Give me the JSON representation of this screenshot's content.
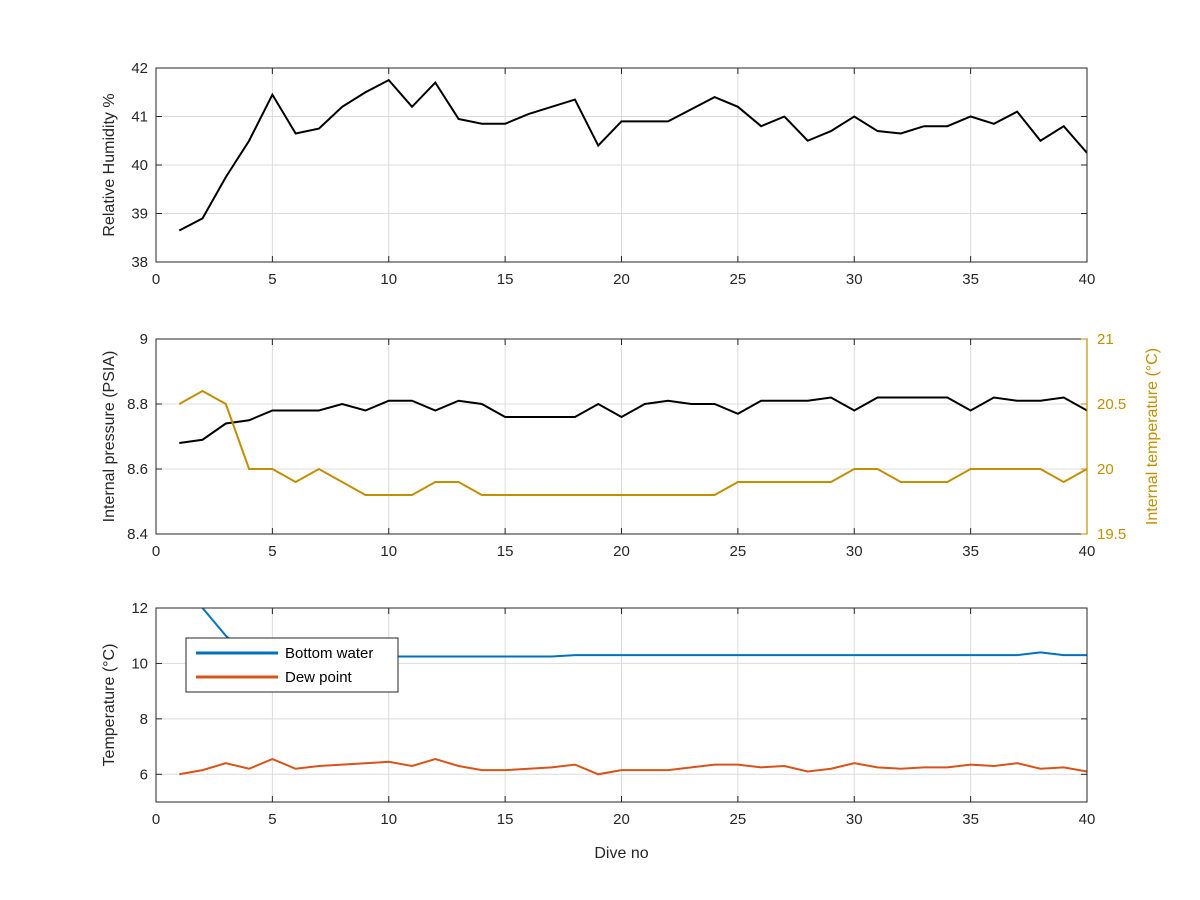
{
  "chart_data": [
    {
      "type": "line",
      "title": "",
      "xlabel": "",
      "ylabel": "Relative Humidity %",
      "xlim": [
        0,
        40
      ],
      "ylim": [
        38,
        42
      ],
      "xticks": [
        0,
        5,
        10,
        15,
        20,
        25,
        30,
        35,
        40
      ],
      "yticks": [
        38,
        39,
        40,
        41,
        42
      ],
      "grid": true,
      "series": [
        {
          "color": "#000000",
          "x": [
            1,
            2,
            3,
            4,
            5,
            6,
            7,
            8,
            9,
            10,
            11,
            12,
            13,
            14,
            15,
            16,
            17,
            18,
            19,
            20,
            21,
            22,
            23,
            24,
            25,
            26,
            27,
            28,
            29,
            30,
            31,
            32,
            33,
            34,
            35,
            36,
            37,
            38,
            39,
            40
          ],
          "values": [
            38.65,
            38.9,
            39.75,
            40.5,
            41.45,
            40.65,
            40.75,
            41.2,
            41.5,
            41.75,
            41.2,
            41.7,
            40.95,
            40.85,
            40.85,
            41.05,
            41.2,
            41.35,
            40.4,
            40.9,
            40.9,
            40.9,
            41.15,
            41.4,
            41.2,
            40.8,
            41.0,
            40.5,
            40.7,
            41.0,
            40.7,
            40.65,
            40.8,
            40.8,
            41.0,
            40.85,
            41.1,
            40.5,
            40.8,
            40.25
          ]
        }
      ]
    },
    {
      "type": "line",
      "title": "",
      "xlabel": "",
      "ylabel": "Internal pressure (PSIA)",
      "ylabel_right": "Internal temperature (°C)",
      "xlim": [
        0,
        40
      ],
      "ylim": [
        8.4,
        9
      ],
      "ylim_right": [
        19.5,
        21
      ],
      "xticks": [
        0,
        5,
        10,
        15,
        20,
        25,
        30,
        35,
        40
      ],
      "yticks": [
        8.4,
        8.6,
        8.8,
        9
      ],
      "ytick_labels": [
        "8.4",
        "8.6",
        "8.8",
        "9"
      ],
      "yticks_right": [
        19.5,
        20,
        20.5,
        21
      ],
      "ytick_labels_right": [
        "19.5",
        "20",
        "20.5",
        "21"
      ],
      "right_axis_color": "#c09000",
      "grid": true,
      "series": [
        {
          "axis": "left",
          "color": "#000000",
          "x": [
            1,
            2,
            3,
            4,
            5,
            6,
            7,
            8,
            9,
            10,
            11,
            12,
            13,
            14,
            15,
            16,
            17,
            18,
            19,
            20,
            21,
            22,
            23,
            24,
            25,
            26,
            27,
            28,
            29,
            30,
            31,
            32,
            33,
            34,
            35,
            36,
            37,
            38,
            39,
            40
          ],
          "values": [
            8.68,
            8.69,
            8.74,
            8.75,
            8.78,
            8.78,
            8.78,
            8.8,
            8.78,
            8.81,
            8.81,
            8.78,
            8.81,
            8.8,
            8.76,
            8.76,
            8.76,
            8.76,
            8.8,
            8.76,
            8.8,
            8.81,
            8.8,
            8.8,
            8.77,
            8.81,
            8.81,
            8.81,
            8.82,
            8.78,
            8.82,
            8.82,
            8.82,
            8.82,
            8.78,
            8.82,
            8.81,
            8.81,
            8.82,
            8.78
          ]
        },
        {
          "axis": "right",
          "color": "#c09000",
          "x": [
            1,
            2,
            3,
            4,
            5,
            6,
            7,
            8,
            9,
            10,
            11,
            12,
            13,
            14,
            15,
            16,
            17,
            18,
            19,
            20,
            21,
            22,
            23,
            24,
            25,
            26,
            27,
            28,
            29,
            30,
            31,
            32,
            33,
            34,
            35,
            36,
            37,
            38,
            39,
            40
          ],
          "values": [
            20.5,
            20.6,
            20.5,
            20.0,
            20.0,
            19.9,
            20.0,
            19.9,
            19.8,
            19.8,
            19.8,
            19.9,
            19.9,
            19.8,
            19.8,
            19.8,
            19.8,
            19.8,
            19.8,
            19.8,
            19.8,
            19.8,
            19.8,
            19.8,
            19.9,
            19.9,
            19.9,
            19.9,
            19.9,
            20.0,
            20.0,
            19.9,
            19.9,
            19.9,
            20.0,
            20.0,
            20.0,
            20.0,
            19.9,
            20.0
          ]
        }
      ]
    },
    {
      "type": "line",
      "title": "",
      "xlabel": "Dive no",
      "ylabel": "Temperature (°C)",
      "xlim": [
        0,
        40
      ],
      "ylim": [
        5,
        12
      ],
      "xticks": [
        0,
        5,
        10,
        15,
        20,
        25,
        30,
        35,
        40
      ],
      "yticks": [
        6,
        8,
        10,
        12
      ],
      "grid": true,
      "legend_position": "top-left",
      "series": [
        {
          "name": "Bottom water",
          "color": "#0072bd",
          "x": [
            1,
            2,
            3,
            4,
            5,
            6,
            7,
            8,
            9,
            10,
            11,
            12,
            13,
            14,
            15,
            16,
            17,
            18,
            19,
            20,
            21,
            22,
            23,
            24,
            25,
            26,
            27,
            28,
            29,
            30,
            31,
            32,
            33,
            34,
            35,
            36,
            37,
            38,
            39,
            40
          ],
          "values": [
            12.6,
            12.0,
            11.0,
            10.25,
            10.25,
            10.25,
            10.25,
            10.25,
            10.25,
            10.25,
            10.25,
            10.25,
            10.25,
            10.25,
            10.25,
            10.25,
            10.25,
            10.3,
            10.3,
            10.3,
            10.3,
            10.3,
            10.3,
            10.3,
            10.3,
            10.3,
            10.3,
            10.3,
            10.3,
            10.3,
            10.3,
            10.3,
            10.3,
            10.3,
            10.3,
            10.3,
            10.3,
            10.4,
            10.3,
            10.3
          ]
        },
        {
          "name": "Dew point",
          "color": "#d95319",
          "x": [
            1,
            2,
            3,
            4,
            5,
            6,
            7,
            8,
            9,
            10,
            11,
            12,
            13,
            14,
            15,
            16,
            17,
            18,
            19,
            20,
            21,
            22,
            23,
            24,
            25,
            26,
            27,
            28,
            29,
            30,
            31,
            32,
            33,
            34,
            35,
            36,
            37,
            38,
            39,
            40
          ],
          "values": [
            6.0,
            6.15,
            6.4,
            6.2,
            6.55,
            6.2,
            6.3,
            6.35,
            6.4,
            6.45,
            6.3,
            6.55,
            6.3,
            6.15,
            6.15,
            6.2,
            6.25,
            6.35,
            6.0,
            6.15,
            6.15,
            6.15,
            6.25,
            6.35,
            6.35,
            6.25,
            6.3,
            6.1,
            6.2,
            6.4,
            6.25,
            6.2,
            6.25,
            6.25,
            6.35,
            6.3,
            6.4,
            6.2,
            6.25,
            6.1
          ]
        }
      ]
    }
  ]
}
